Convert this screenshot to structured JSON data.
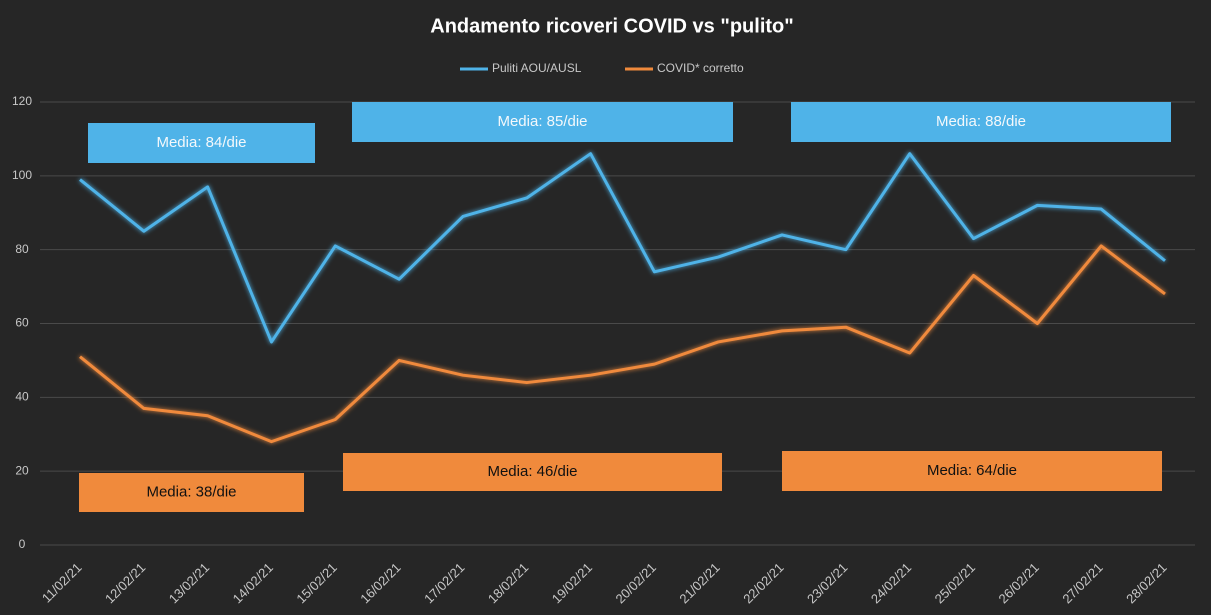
{
  "chart_data": {
    "type": "line",
    "title": "Andamento ricoveri COVID vs \"pulito\"",
    "categories": [
      "11/02/21",
      "12/02/21",
      "13/02/21",
      "14/02/21",
      "15/02/21",
      "16/02/21",
      "17/02/21",
      "18/02/21",
      "19/02/21",
      "20/02/21",
      "21/02/21",
      "22/02/21",
      "23/02/21",
      "24/02/21",
      "25/02/21",
      "26/02/21",
      "27/02/21",
      "28/02/21"
    ],
    "series": [
      {
        "name": "Puliti AOU/AUSL",
        "color": "#4fb3e8",
        "values": [
          99,
          85,
          97,
          55,
          81,
          72,
          89,
          94,
          106,
          74,
          78,
          84,
          80,
          106,
          83,
          92,
          91,
          77
        ]
      },
      {
        "name": "COVID* corretto",
        "color": "#f08a3c",
        "values": [
          51,
          37,
          35,
          28,
          34,
          50,
          46,
          44,
          46,
          49,
          55,
          58,
          59,
          52,
          73,
          60,
          81,
          68
        ]
      }
    ],
    "ylim": [
      0,
      120
    ],
    "yticks": [
      0,
      20,
      40,
      60,
      80,
      100,
      120
    ],
    "grid": true,
    "legend": "top",
    "annotations": [
      "Media: 84/die",
      "Media: 85/die",
      "Media: 88/die",
      "Media: 38/die",
      "Media: 46/die",
      "Media: 64/die"
    ]
  }
}
